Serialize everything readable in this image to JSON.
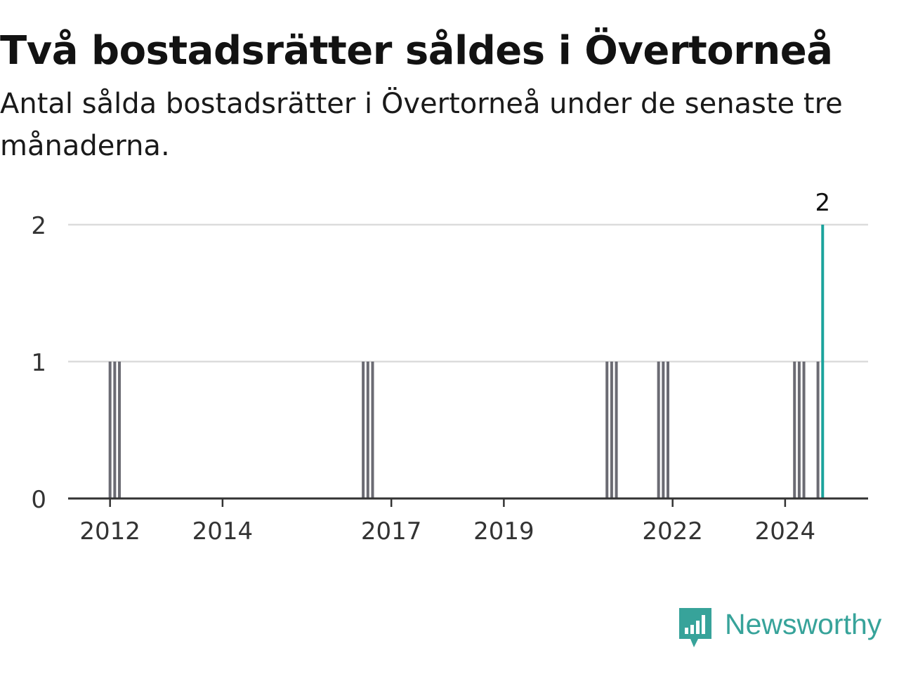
{
  "title": "Två bostadsrätter såldes i Övertorneå",
  "subtitle": "Antal sålda bostadsrätter i Övertorneå under de senaste tre månaderna.",
  "brand": {
    "name": "Newsworthy",
    "color": "#37a39a",
    "icon": "newsworthy-logo-icon"
  },
  "colors": {
    "bar": "#6b6b73",
    "highlight": "#1ba39c",
    "grid": "#dcdcdc",
    "axis": "#333333"
  },
  "chart_data": {
    "type": "bar",
    "title": "Två bostadsrätter såldes i Övertorneå",
    "subtitle": "Antal sålda bostadsrätter i Övertorneå under de senaste tre månaderna.",
    "xlabel": "",
    "ylabel": "",
    "ylim": [
      0,
      2
    ],
    "yticks": [
      0,
      1,
      2
    ],
    "xticks": [
      "2012",
      "2014",
      "2017",
      "2019",
      "2022",
      "2024"
    ],
    "grid": true,
    "x": [
      "2012-01",
      "2012-02",
      "2012-03",
      "2016-07",
      "2016-08",
      "2016-09",
      "2020-11",
      "2020-12",
      "2021-01",
      "2021-10",
      "2021-11",
      "2021-12",
      "2024-03",
      "2024-04",
      "2024-05",
      "2024-08",
      "2024-09"
    ],
    "values": [
      1,
      1,
      1,
      1,
      1,
      1,
      1,
      1,
      1,
      1,
      1,
      1,
      1,
      1,
      1,
      1,
      2
    ],
    "highlight": "2024-09",
    "data_labels": [
      {
        "x": "2024-09",
        "text": "2"
      }
    ]
  }
}
